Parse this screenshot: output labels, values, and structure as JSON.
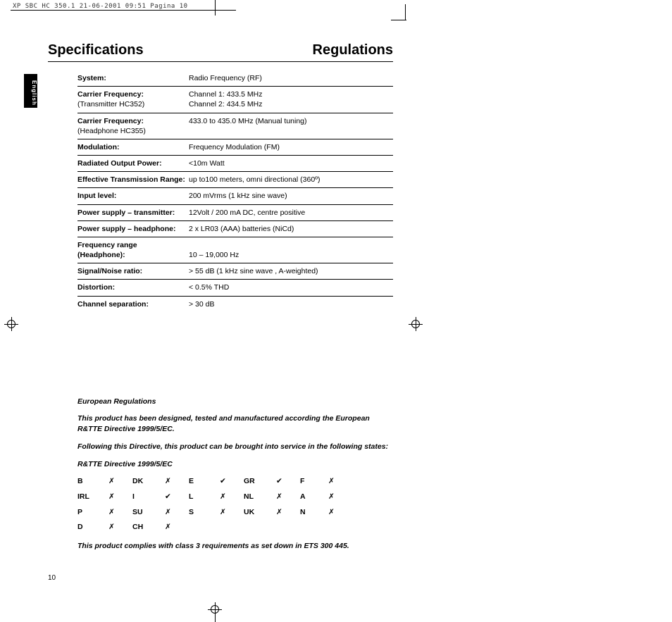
{
  "header_line": "XP SBC HC 350.1  21-06-2001 09:51  Pagina 10",
  "titles": {
    "left": "Specifications",
    "right": "Regulations"
  },
  "lang_tab": "English",
  "page_number": "10",
  "specs": [
    {
      "label_bold": "System:",
      "label_sub": "",
      "value": "Radio Frequency (RF)"
    },
    {
      "label_bold": "Carrier Frequency:",
      "label_sub": "(Transmitter HC352)",
      "value": "Channel 1: 433.5 MHz\nChannel 2: 434.5 MHz"
    },
    {
      "label_bold": "Carrier Frequency:",
      "label_sub": "(Headphone HC355)",
      "value": "433.0 to 435.0 MHz (Manual tuning)"
    },
    {
      "label_bold": "Modulation:",
      "label_sub": "",
      "value": "Frequency Modulation (FM)"
    },
    {
      "label_bold": "Radiated Output Power:",
      "label_sub": "",
      "value": "<10m Watt"
    },
    {
      "label_bold": "Effective Transmission Range:",
      "label_sub": "",
      "value": "up to100 meters, omni directional (360º)"
    },
    {
      "label_bold": "Input level:",
      "label_sub": "",
      "value": "200 mVrms (1 kHz sine wave)"
    },
    {
      "label_bold": "Power supply – transmitter:",
      "label_sub": "",
      "value": "12Volt / 200 mA DC, centre positive"
    },
    {
      "label_bold": "Power supply – headphone:",
      "label_sub": "",
      "value": "2 x LR03 (AAA) batteries (NiCd)"
    },
    {
      "label_bold": "Frequency range\n(Headphone):",
      "label_sub": "",
      "value": "\n10 – 19,000 Hz"
    },
    {
      "label_bold": "Signal/Noise ratio:",
      "label_sub": "",
      "value": "> 55 dB (1 kHz sine wave , A-weighted)"
    },
    {
      "label_bold": "Distortion:",
      "label_sub": "",
      "value": "< 0.5% THD"
    },
    {
      "label_bold": "Channel separation:",
      "label_sub": "",
      "value": "> 30 dB"
    }
  ],
  "regulations": {
    "heading": "European Regulations",
    "p1": "This product has been designed, tested and manufactured according the European R&TTE Directive 1999/5/EC.",
    "p2": "Following this Directive, this product can be brought into service in the following states:",
    "directive": "R&TTE Directive 1999/5/EC",
    "compliance": "This product complies with class 3 requirements as set down in ETS 300 445."
  },
  "countries": [
    [
      "B",
      "x",
      "DK",
      "x",
      "E",
      "v",
      "GR",
      "v",
      "F",
      "x"
    ],
    [
      "IRL",
      "x",
      "I",
      "v",
      "L",
      "x",
      "NL",
      "x",
      "A",
      "x"
    ],
    [
      "P",
      "x",
      "SU",
      "x",
      "S",
      "x",
      "UK",
      "x",
      "N",
      "x"
    ],
    [
      "D",
      "x",
      "CH",
      "x",
      "",
      "",
      "",
      "",
      "",
      ""
    ]
  ]
}
